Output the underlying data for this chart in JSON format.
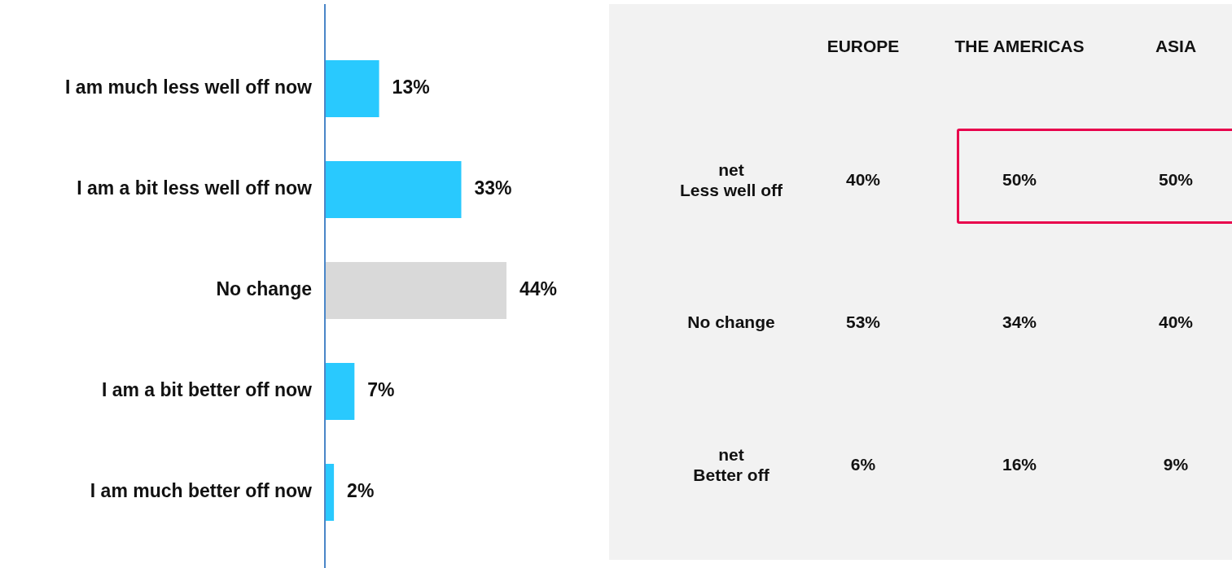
{
  "chart_data": [
    {
      "type": "bar",
      "orientation": "horizontal",
      "categories": [
        "I am much less well off now",
        "I am a bit less well off now",
        "No change",
        "I am a bit better off now",
        "I am much better off now"
      ],
      "values": [
        13,
        33,
        44,
        7,
        2
      ],
      "colors": [
        "#29c9fe",
        "#29c9fe",
        "#d9d9d9",
        "#29c9fe",
        "#29c9fe"
      ],
      "value_labels": [
        "13%",
        "33%",
        "44%",
        "7%",
        "2%"
      ],
      "legend": false
    },
    {
      "type": "heatmap",
      "categories": [
        "EUROPE",
        "THE AMERICAS",
        "ASIA"
      ],
      "y_categories": [
        "net\nLess well off",
        "No change",
        "net\nBetter off"
      ],
      "cells": [
        [
          40,
          50,
          50
        ],
        [
          53,
          34,
          40
        ],
        [
          6,
          16,
          9
        ]
      ],
      "cell_labels": [
        [
          "40%",
          "50%",
          "50%"
        ],
        [
          "53%",
          "34%",
          "40%"
        ],
        [
          "6%",
          "16%",
          "9%"
        ]
      ]
    }
  ]
}
